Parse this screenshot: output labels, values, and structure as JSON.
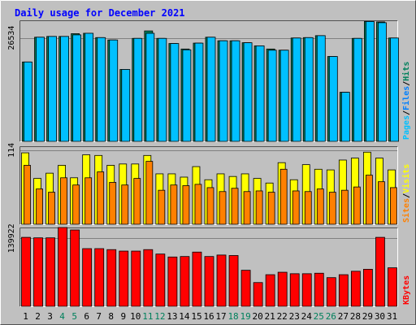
{
  "chart_data": {
    "type": "bar",
    "title": "Daily usage for December 2021",
    "categories": [
      "1",
      "2",
      "3",
      "4",
      "5",
      "6",
      "7",
      "8",
      "9",
      "10",
      "11",
      "12",
      "13",
      "14",
      "15",
      "16",
      "17",
      "18",
      "19",
      "20",
      "21",
      "22",
      "23",
      "24",
      "25",
      "26",
      "27",
      "28",
      "29",
      "30",
      "31"
    ],
    "weekend_days": [
      "4",
      "5",
      "11",
      "12",
      "18",
      "19",
      "25",
      "26"
    ],
    "colors": {
      "title": "#0000ff",
      "weekday_label": "#000000",
      "weekend_label": "#00805c",
      "hits": "#00805c",
      "files": "#0080ff",
      "pages": "#00c0ff",
      "visits": "#ffff00",
      "sites": "#ff8000",
      "kbytes": "#ff0000",
      "gridline": "#808080",
      "background": "#c0c0c0"
    },
    "panels": [
      {
        "name": "hits-files-pages",
        "ytick": "26534",
        "ymax": 31000,
        "grid": [
          26534
        ],
        "legend": [
          "Pages",
          "/",
          "Files",
          "/",
          "Hits"
        ],
        "series": [
          {
            "name": "Hits",
            "values": [
              20400,
              26700,
              26900,
              26900,
              27600,
              27700,
              26600,
              26000,
              18500,
              26400,
              28300,
              26400,
              25100,
              23700,
              25200,
              26700,
              25800,
              25800,
              25300,
              24500,
              23700,
              23400,
              26500,
              26600,
              27100,
              21800,
              12700,
              26400,
              30700,
              30600,
              26500
            ]
          },
          {
            "name": "Files",
            "values": [
              20400,
              26700,
              26900,
              26900,
              27300,
              27700,
              26600,
              26000,
              18500,
              26400,
              27700,
              26400,
              25100,
              23500,
              25200,
              26700,
              25800,
              25800,
              25300,
              24500,
              23400,
              23400,
              26500,
              26600,
              27100,
              21800,
              12700,
              26400,
              30700,
              30400,
              26500
            ]
          },
          {
            "name": "Pages",
            "values": [
              20400,
              26700,
              26900,
              26900,
              27300,
              27700,
              26600,
              26000,
              18500,
              26400,
              27700,
              26400,
              25100,
              23500,
              25200,
              26700,
              25800,
              25800,
              25300,
              24500,
              23400,
              23400,
              26500,
              26600,
              27100,
              21800,
              12700,
              26400,
              30700,
              30400,
              26500
            ]
          }
        ]
      },
      {
        "name": "visits-sites",
        "ytick": "114",
        "ymax": 120,
        "grid": [
          114
        ],
        "legend": [
          "Sites",
          "/",
          "Visits"
        ],
        "series": [
          {
            "name": "Visits",
            "values": [
              110,
              71,
              79,
              91,
              72,
              107,
              106,
              91,
              93,
              93,
              106,
              78,
              78,
              73,
              89,
              69,
              78,
              74,
              78,
              71,
              64,
              95,
              69,
              92,
              85,
              84,
              99,
              102,
              111,
              102,
              84
            ]
          },
          {
            "name": "Sites",
            "values": [
              91,
              55,
              50,
              72,
              61,
              72,
              81,
              65,
              61,
              71,
              97,
              53,
              61,
              60,
              62,
              57,
              51,
              56,
              51,
              52,
              50,
              85,
              52,
              51,
              55,
              50,
              53,
              58,
              76,
              66,
              57
            ]
          }
        ]
      },
      {
        "name": "kbytes",
        "ytick": "139922",
        "ymax": 162000,
        "grid": [
          139922
        ],
        "legend": [
          "KBytes"
        ],
        "series": [
          {
            "name": "KBytes",
            "values": [
              142000,
              141000,
              141000,
              162000,
              157000,
              119000,
              119000,
              117000,
              114000,
              114000,
              117000,
              108000,
              102000,
              103000,
              112000,
              103000,
              106000,
              105000,
              75000,
              50000,
              66000,
              71000,
              68000,
              68000,
              69000,
              60000,
              66000,
              73000,
              77000,
              142000,
              80000
            ]
          }
        ]
      }
    ]
  }
}
